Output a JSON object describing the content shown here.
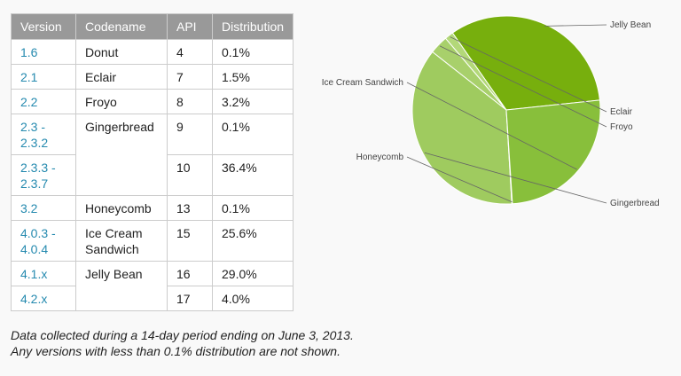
{
  "table": {
    "headers": [
      "Version",
      "Codename",
      "API",
      "Distribution"
    ],
    "rows": [
      {
        "version": "1.6",
        "codename": "Donut",
        "api": "4",
        "distribution": "0.1%"
      },
      {
        "version": "2.1",
        "codename": "Eclair",
        "api": "7",
        "distribution": "1.5%"
      },
      {
        "version": "2.2",
        "codename": "Froyo",
        "api": "8",
        "distribution": "3.2%"
      },
      {
        "version": "2.3 - 2.3.2",
        "codename": "Gingerbread",
        "api": "9",
        "distribution": "0.1%"
      },
      {
        "version": "2.3.3 - 2.3.7",
        "codename": "",
        "api": "10",
        "distribution": "36.4%"
      },
      {
        "version": "3.2",
        "codename": "Honeycomb",
        "api": "13",
        "distribution": "0.1%"
      },
      {
        "version": "4.0.3 - 4.0.4",
        "codename": "Ice Cream Sandwich",
        "api": "15",
        "distribution": "25.6%"
      },
      {
        "version": "4.1.x",
        "codename": "Jelly Bean",
        "api": "16",
        "distribution": "29.0%"
      },
      {
        "version": "4.2.x",
        "codename": "",
        "api": "17",
        "distribution": "4.0%"
      }
    ]
  },
  "footnote": {
    "line1": "Data collected during a 14-day period ending on June 3, 2013.",
    "line2": "Any versions with less than 0.1% distribution are not shown."
  },
  "chart_data": {
    "type": "pie",
    "slices": [
      {
        "label": "Jelly Bean",
        "value": 33.0,
        "color": "#77af0d"
      },
      {
        "label": "Eclair",
        "value": 1.5,
        "color": "#b3d879"
      },
      {
        "label": "Froyo",
        "value": 3.2,
        "color": "#a8d06b"
      },
      {
        "label": "Gingerbread",
        "value": 36.5,
        "color": "#9fcb5f"
      },
      {
        "label": "Honeycomb",
        "value": 0.1,
        "color": "#8fc24e"
      },
      {
        "label": "Ice Cream Sandwich",
        "value": 25.6,
        "color": "#88bf3b"
      }
    ]
  }
}
